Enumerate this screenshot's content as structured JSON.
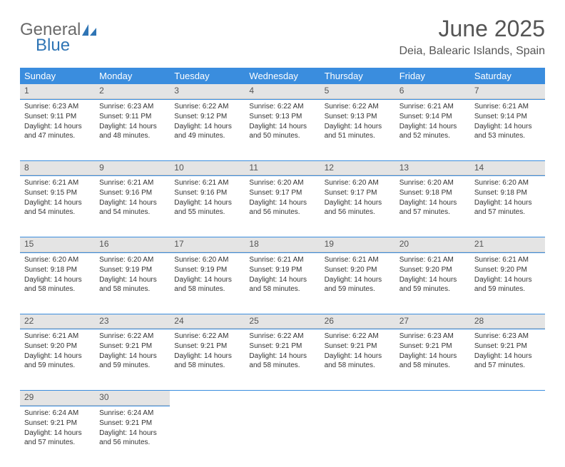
{
  "brand": {
    "part1": "General",
    "part2": "Blue"
  },
  "title": "June 2025",
  "location": "Deia, Balearic Islands, Spain",
  "colors": {
    "header_bg": "#3a8dde",
    "header_text": "#ffffff",
    "daynum_bg": "#e4e4e4",
    "body_bg": "#ffffff",
    "text": "#333333",
    "logo_gray": "#6a6a6a",
    "logo_blue": "#2f75b5",
    "border": "#3a8dde"
  },
  "weekdays": [
    "Sunday",
    "Monday",
    "Tuesday",
    "Wednesday",
    "Thursday",
    "Friday",
    "Saturday"
  ],
  "weeks": [
    [
      {
        "day": "1",
        "sunrise": "Sunrise: 6:23 AM",
        "sunset": "Sunset: 9:11 PM",
        "daylight": "Daylight: 14 hours and 47 minutes."
      },
      {
        "day": "2",
        "sunrise": "Sunrise: 6:23 AM",
        "sunset": "Sunset: 9:11 PM",
        "daylight": "Daylight: 14 hours and 48 minutes."
      },
      {
        "day": "3",
        "sunrise": "Sunrise: 6:22 AM",
        "sunset": "Sunset: 9:12 PM",
        "daylight": "Daylight: 14 hours and 49 minutes."
      },
      {
        "day": "4",
        "sunrise": "Sunrise: 6:22 AM",
        "sunset": "Sunset: 9:13 PM",
        "daylight": "Daylight: 14 hours and 50 minutes."
      },
      {
        "day": "5",
        "sunrise": "Sunrise: 6:22 AM",
        "sunset": "Sunset: 9:13 PM",
        "daylight": "Daylight: 14 hours and 51 minutes."
      },
      {
        "day": "6",
        "sunrise": "Sunrise: 6:21 AM",
        "sunset": "Sunset: 9:14 PM",
        "daylight": "Daylight: 14 hours and 52 minutes."
      },
      {
        "day": "7",
        "sunrise": "Sunrise: 6:21 AM",
        "sunset": "Sunset: 9:14 PM",
        "daylight": "Daylight: 14 hours and 53 minutes."
      }
    ],
    [
      {
        "day": "8",
        "sunrise": "Sunrise: 6:21 AM",
        "sunset": "Sunset: 9:15 PM",
        "daylight": "Daylight: 14 hours and 54 minutes."
      },
      {
        "day": "9",
        "sunrise": "Sunrise: 6:21 AM",
        "sunset": "Sunset: 9:16 PM",
        "daylight": "Daylight: 14 hours and 54 minutes."
      },
      {
        "day": "10",
        "sunrise": "Sunrise: 6:21 AM",
        "sunset": "Sunset: 9:16 PM",
        "daylight": "Daylight: 14 hours and 55 minutes."
      },
      {
        "day": "11",
        "sunrise": "Sunrise: 6:20 AM",
        "sunset": "Sunset: 9:17 PM",
        "daylight": "Daylight: 14 hours and 56 minutes."
      },
      {
        "day": "12",
        "sunrise": "Sunrise: 6:20 AM",
        "sunset": "Sunset: 9:17 PM",
        "daylight": "Daylight: 14 hours and 56 minutes."
      },
      {
        "day": "13",
        "sunrise": "Sunrise: 6:20 AM",
        "sunset": "Sunset: 9:18 PM",
        "daylight": "Daylight: 14 hours and 57 minutes."
      },
      {
        "day": "14",
        "sunrise": "Sunrise: 6:20 AM",
        "sunset": "Sunset: 9:18 PM",
        "daylight": "Daylight: 14 hours and 57 minutes."
      }
    ],
    [
      {
        "day": "15",
        "sunrise": "Sunrise: 6:20 AM",
        "sunset": "Sunset: 9:18 PM",
        "daylight": "Daylight: 14 hours and 58 minutes."
      },
      {
        "day": "16",
        "sunrise": "Sunrise: 6:20 AM",
        "sunset": "Sunset: 9:19 PM",
        "daylight": "Daylight: 14 hours and 58 minutes."
      },
      {
        "day": "17",
        "sunrise": "Sunrise: 6:20 AM",
        "sunset": "Sunset: 9:19 PM",
        "daylight": "Daylight: 14 hours and 58 minutes."
      },
      {
        "day": "18",
        "sunrise": "Sunrise: 6:21 AM",
        "sunset": "Sunset: 9:19 PM",
        "daylight": "Daylight: 14 hours and 58 minutes."
      },
      {
        "day": "19",
        "sunrise": "Sunrise: 6:21 AM",
        "sunset": "Sunset: 9:20 PM",
        "daylight": "Daylight: 14 hours and 59 minutes."
      },
      {
        "day": "20",
        "sunrise": "Sunrise: 6:21 AM",
        "sunset": "Sunset: 9:20 PM",
        "daylight": "Daylight: 14 hours and 59 minutes."
      },
      {
        "day": "21",
        "sunrise": "Sunrise: 6:21 AM",
        "sunset": "Sunset: 9:20 PM",
        "daylight": "Daylight: 14 hours and 59 minutes."
      }
    ],
    [
      {
        "day": "22",
        "sunrise": "Sunrise: 6:21 AM",
        "sunset": "Sunset: 9:20 PM",
        "daylight": "Daylight: 14 hours and 59 minutes."
      },
      {
        "day": "23",
        "sunrise": "Sunrise: 6:22 AM",
        "sunset": "Sunset: 9:21 PM",
        "daylight": "Daylight: 14 hours and 59 minutes."
      },
      {
        "day": "24",
        "sunrise": "Sunrise: 6:22 AM",
        "sunset": "Sunset: 9:21 PM",
        "daylight": "Daylight: 14 hours and 58 minutes."
      },
      {
        "day": "25",
        "sunrise": "Sunrise: 6:22 AM",
        "sunset": "Sunset: 9:21 PM",
        "daylight": "Daylight: 14 hours and 58 minutes."
      },
      {
        "day": "26",
        "sunrise": "Sunrise: 6:22 AM",
        "sunset": "Sunset: 9:21 PM",
        "daylight": "Daylight: 14 hours and 58 minutes."
      },
      {
        "day": "27",
        "sunrise": "Sunrise: 6:23 AM",
        "sunset": "Sunset: 9:21 PM",
        "daylight": "Daylight: 14 hours and 58 minutes."
      },
      {
        "day": "28",
        "sunrise": "Sunrise: 6:23 AM",
        "sunset": "Sunset: 9:21 PM",
        "daylight": "Daylight: 14 hours and 57 minutes."
      }
    ],
    [
      {
        "day": "29",
        "sunrise": "Sunrise: 6:24 AM",
        "sunset": "Sunset: 9:21 PM",
        "daylight": "Daylight: 14 hours and 57 minutes."
      },
      {
        "day": "30",
        "sunrise": "Sunrise: 6:24 AM",
        "sunset": "Sunset: 9:21 PM",
        "daylight": "Daylight: 14 hours and 56 minutes."
      },
      null,
      null,
      null,
      null,
      null
    ]
  ]
}
